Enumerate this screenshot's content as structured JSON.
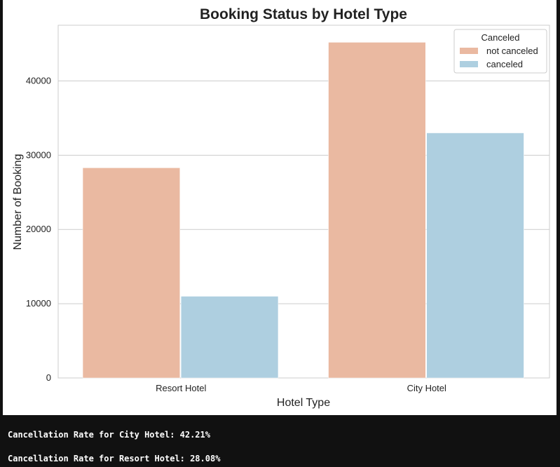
{
  "chart_data": {
    "type": "bar",
    "title": "Booking Status by Hotel Type",
    "xlabel": "Hotel Type",
    "ylabel": "Number of Booking",
    "categories": [
      "Resort Hotel",
      "City Hotel"
    ],
    "series": [
      {
        "name": "not canceled",
        "values": [
          28300,
          45200
        ],
        "color": "#eab9a1"
      },
      {
        "name": "canceled",
        "values": [
          11000,
          33000
        ],
        "color": "#aecfe0"
      }
    ],
    "ylim": [
      0,
      47500
    ],
    "yticks": [
      0,
      10000,
      20000,
      30000,
      40000
    ],
    "grid": true,
    "legend": {
      "title": "Canceled",
      "placement": "top-right"
    }
  },
  "output": {
    "lines": [
      "Cancellation Rate for City Hotel: 42.21%",
      "Cancellation Rate for Resort Hotel: 28.08%"
    ]
  }
}
